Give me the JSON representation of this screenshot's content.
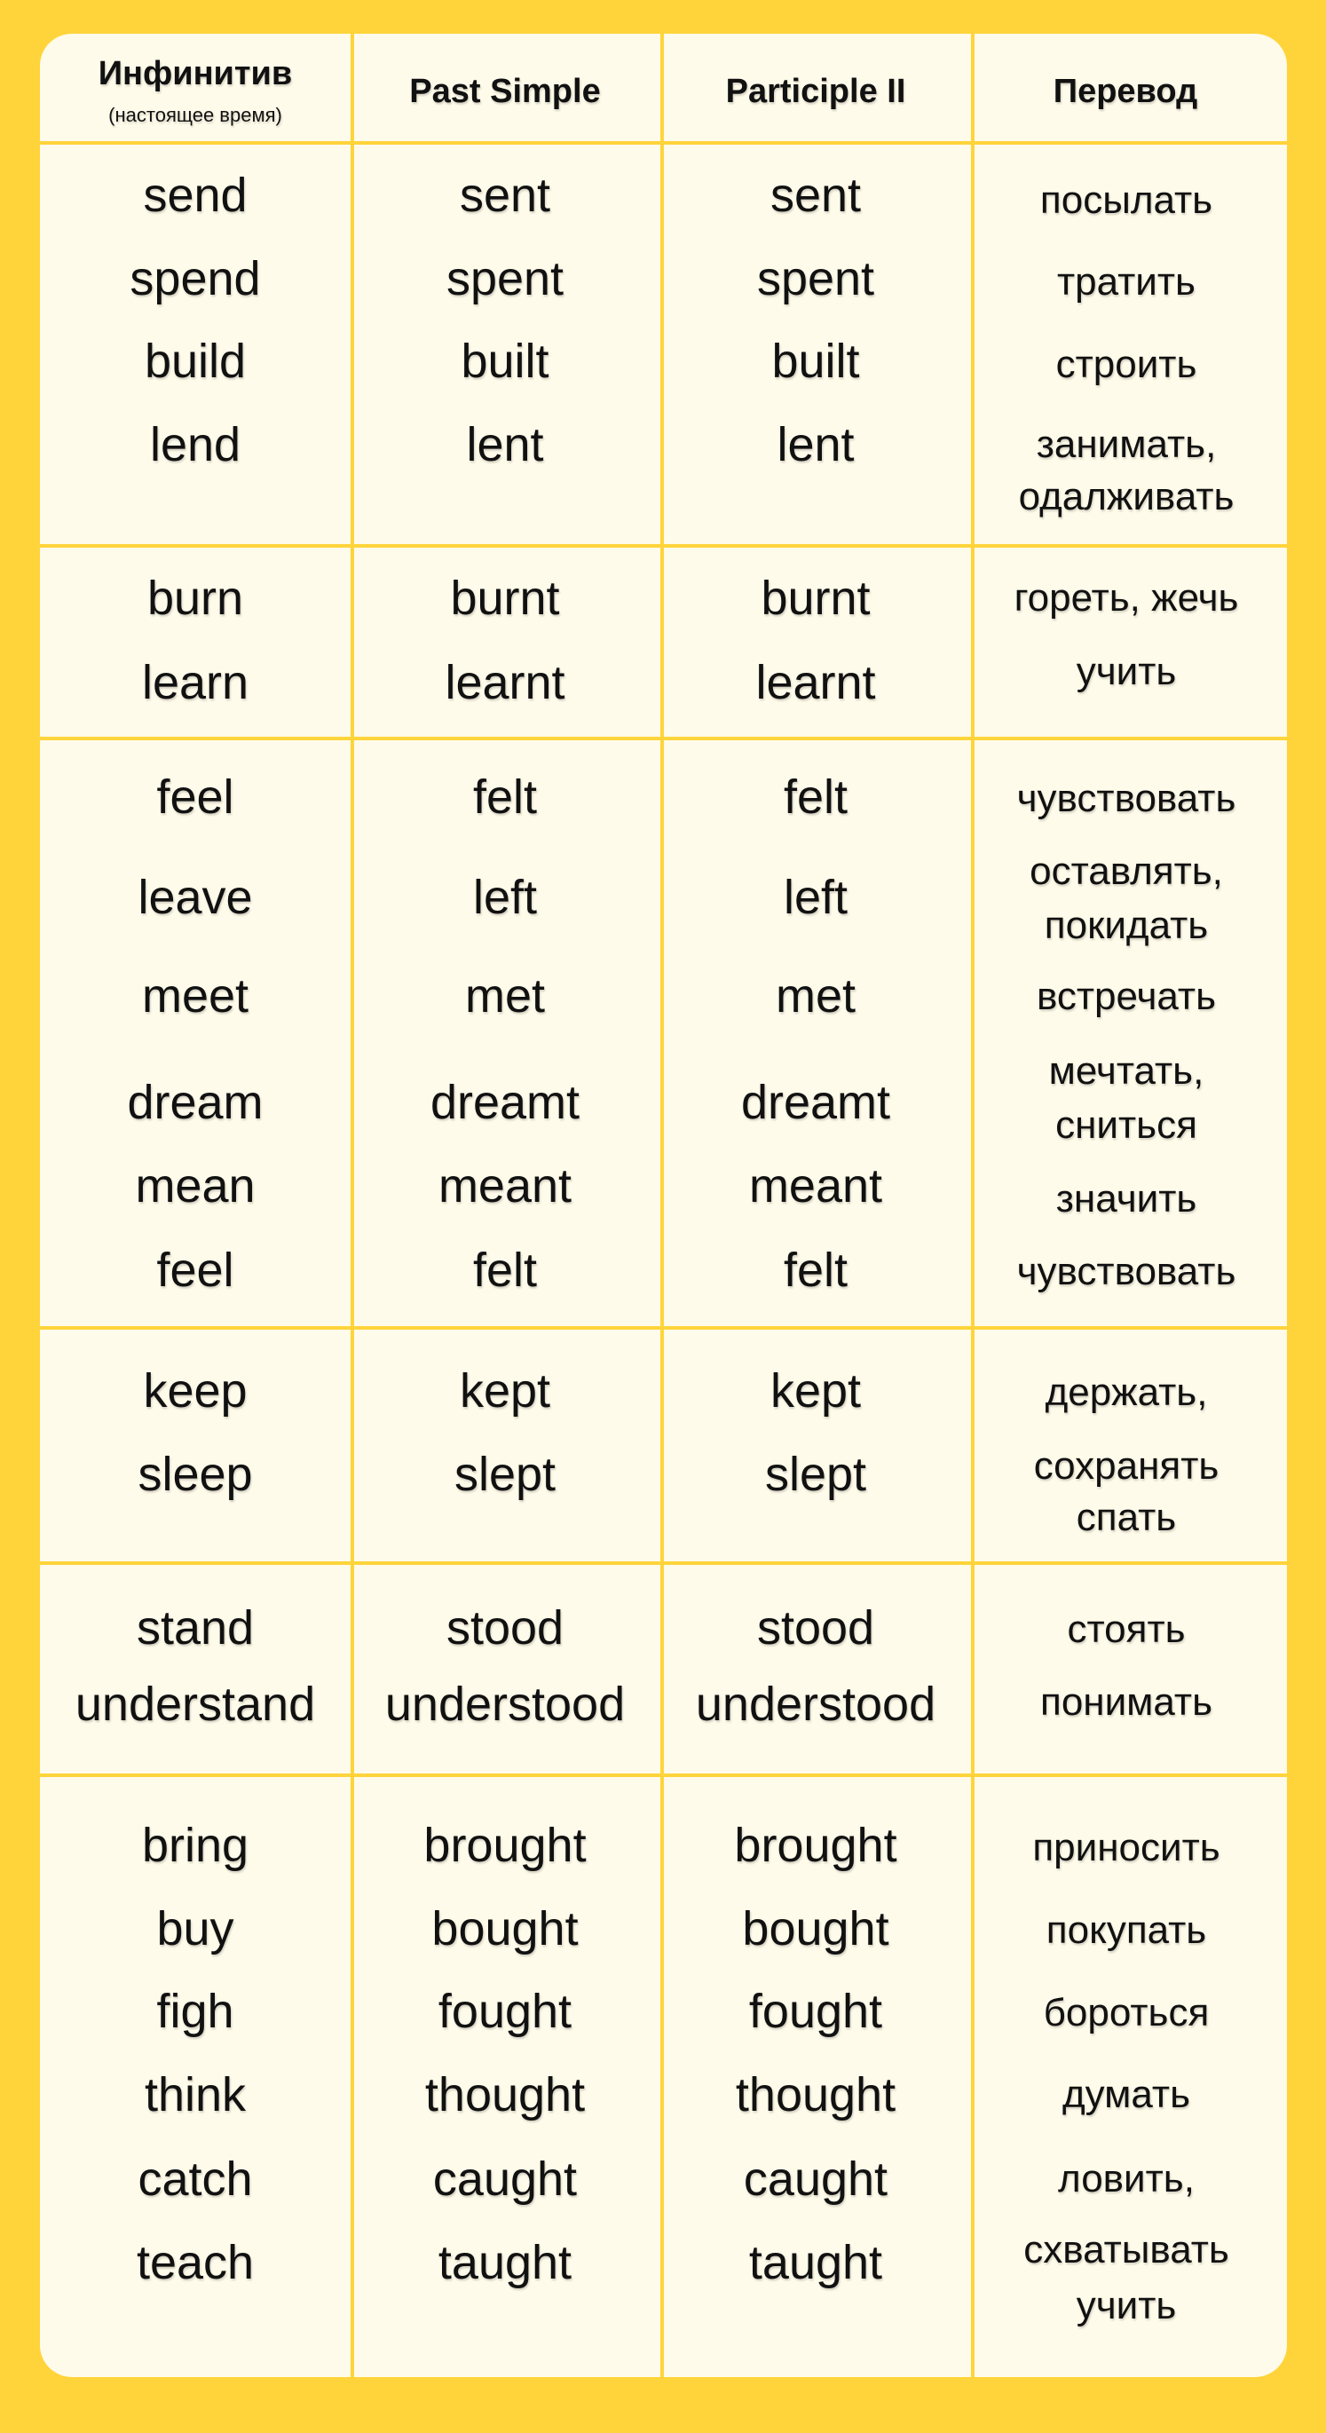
{
  "colors": {
    "frame": "#FFD43B",
    "card": "#FFFBEA",
    "text": "#111111"
  },
  "header": {
    "infinitive": "Инфинитив",
    "infinitive_sub": "(настоящее время)",
    "past_simple": "Past Simple",
    "participle": "Participle II",
    "translation": "Перевод"
  },
  "groups": [
    {
      "rows": [
        [
          "send",
          "sent",
          "sent"
        ],
        [
          "spend",
          "spent",
          "spent"
        ],
        [
          "build",
          "built",
          "built"
        ],
        [
          "lend",
          "lent",
          "lent"
        ]
      ],
      "translations": [
        "посылать",
        "тратить",
        "строить",
        "занимать,",
        "одалживать"
      ]
    },
    {
      "rows": [
        [
          "burn",
          "burnt",
          "burnt"
        ],
        [
          "learn",
          "learnt",
          "learnt"
        ]
      ],
      "translations": [
        "гореть, жечь",
        "учить"
      ]
    },
    {
      "rows": [
        [
          "feel",
          "felt",
          "felt"
        ],
        [
          "leave",
          "left",
          "left"
        ],
        [
          "meet",
          "met",
          "met"
        ],
        [
          "dream",
          "dreamt",
          "dreamt"
        ],
        [
          "mean",
          "meant",
          "meant"
        ],
        [
          "feel",
          "felt",
          "felt"
        ]
      ],
      "translations": [
        "чувствовать",
        "оставлять,",
        "покидать",
        "встречать",
        "мечтать,",
        "сниться",
        "значить",
        "чувствовать"
      ]
    },
    {
      "rows": [
        [
          "keep",
          "kept",
          "kept"
        ],
        [
          "sleep",
          "slept",
          "slept"
        ]
      ],
      "translations": [
        "держать,",
        "сохранять",
        "спать"
      ]
    },
    {
      "rows": [
        [
          "stand",
          "stood",
          "stood"
        ],
        [
          "understand",
          "understood",
          "understood"
        ]
      ],
      "translations": [
        "стоять",
        "понимать"
      ]
    },
    {
      "rows": [
        [
          "bring",
          "brought",
          "brought"
        ],
        [
          "buy",
          "bought",
          "bought"
        ],
        [
          "figh",
          "fought",
          "fought"
        ],
        [
          "think",
          "thought",
          "thought"
        ],
        [
          "catch",
          "caught",
          "caught"
        ],
        [
          "teach",
          "taught",
          "taught"
        ]
      ],
      "translations": [
        "приносить",
        "покупать",
        "бороться",
        "думать",
        "ловить,",
        "схватывать",
        "учить"
      ]
    }
  ]
}
